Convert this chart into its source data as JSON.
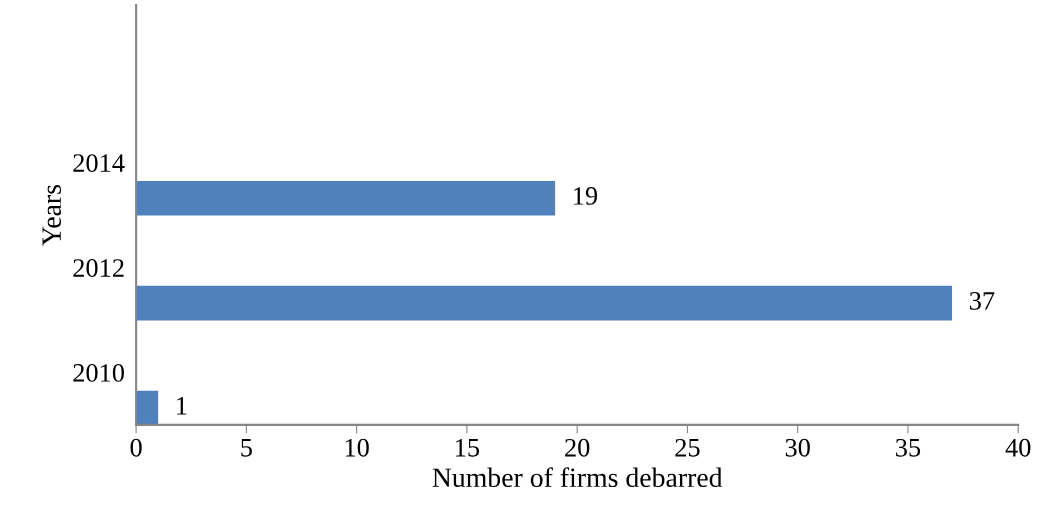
{
  "chart_data": {
    "type": "bar",
    "orientation": "horizontal",
    "xlabel": "Number of firms debarred",
    "ylabel": "Years",
    "categories": [
      null,
      "2014",
      "2012",
      "2010"
    ],
    "values": [
      null,
      19,
      37,
      1
    ],
    "color": "#4f81bd",
    "xlim": [
      0,
      40
    ],
    "xticks": [
      0,
      5,
      10,
      15,
      20,
      25,
      30,
      35,
      40
    ],
    "data_labels": true,
    "grid": false,
    "legend": false
  }
}
